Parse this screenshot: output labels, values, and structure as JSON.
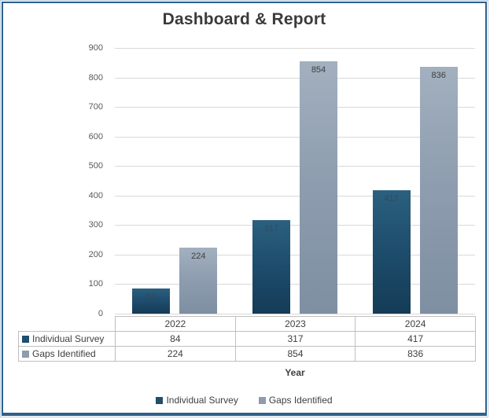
{
  "title": "Dashboard & Report",
  "colors": {
    "series1": "#1F4E6E",
    "series2": "#8D9CAE",
    "gridline": "#D9D9D9",
    "table_border": "#BFBFBF",
    "axis_text": "#595959",
    "text": "#404040",
    "frame_border": "#2E5F8A"
  },
  "chart_data": {
    "type": "bar",
    "title": "Dashboard & Report",
    "categories": [
      "2022",
      "2023",
      "2024"
    ],
    "series": [
      {
        "name": "Individual Survey",
        "values": [
          84,
          317,
          417
        ],
        "color": "#1F4E6E"
      },
      {
        "name": "Gaps Identified",
        "values": [
          224,
          854,
          836
        ],
        "color": "#8D9CAE"
      }
    ],
    "xlabel": "Year",
    "ylabel": "",
    "ylim": [
      0,
      900
    ],
    "y_ticks": [
      0,
      100,
      200,
      300,
      400,
      500,
      600,
      700,
      800,
      900
    ],
    "grid": true,
    "legend_position": "bottom",
    "data_labels": "inside-end",
    "data_table_shown": true
  }
}
